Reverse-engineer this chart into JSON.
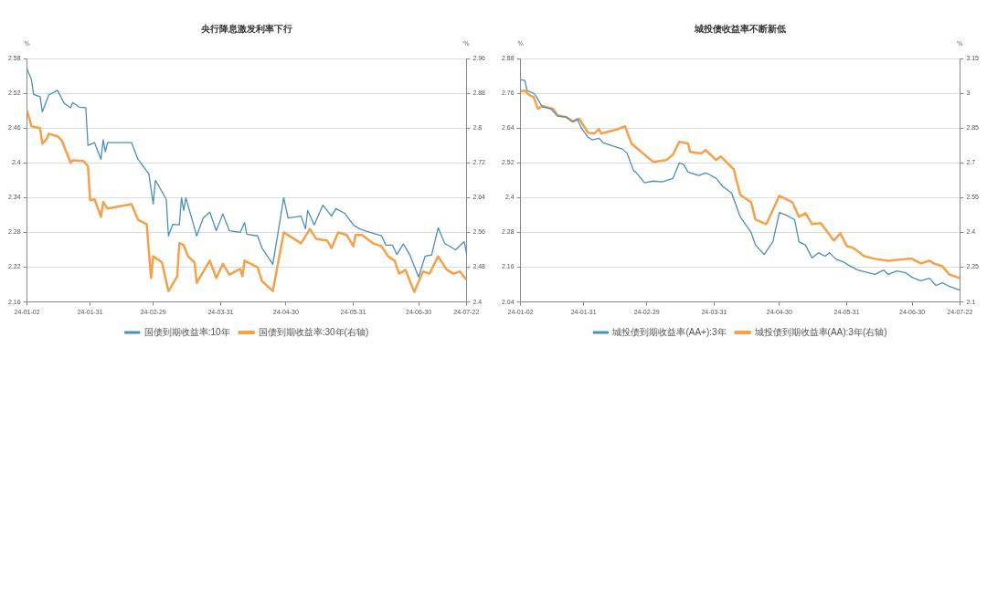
{
  "chart_data": [
    {
      "type": "line",
      "title": "央行降息激发利率下行",
      "ylabel": "%",
      "y2label": "%",
      "legend": "bottom",
      "grid": "y",
      "marker": "none",
      "line_style": "solid",
      "xlim": [
        "--01-02",
        "--07-22"
      ],
      "xticks": [
        {
          "value": "--01-02",
          "label": "24-01-02"
        },
        {
          "value": "--01-31",
          "label": "24-01-31"
        },
        {
          "value": "--02-29",
          "label": "24-02-29"
        },
        {
          "value": "--03-31",
          "label": "24-03-31"
        },
        {
          "value": "--04-30",
          "label": "24-04-30"
        },
        {
          "value": "--05-31",
          "label": "24-05-31"
        },
        {
          "value": "--06-30",
          "label": "24-06-30"
        },
        {
          "value": "--07-22",
          "label": "24-07-22"
        }
      ],
      "ylim": [
        2.16,
        2.58
      ],
      "yticks": [
        2.16,
        2.22,
        2.28,
        2.34,
        2.4,
        2.46,
        2.52,
        2.58
      ],
      "y2lim": [
        2.4,
        2.96
      ],
      "y2ticks": [
        2.4,
        2.48,
        2.56,
        2.64,
        2.72,
        2.8,
        2.88,
        2.96
      ],
      "series": [
        {
          "name": "国债到期收益率:10年",
          "color": "#4a90b8",
          "x": [
            "--01-02",
            "--01-04",
            "--01-05",
            "--01-08",
            "--01-09",
            "--01-12",
            "--01-16",
            "--01-19",
            "--01-22",
            "--01-23",
            "--01-26",
            "--01-29",
            "--01-30",
            "--02-02",
            "--02-05",
            "--02-06",
            "--02-07",
            "--02-08",
            "--02-19",
            "--02-22",
            "--02-27",
            "--02-29",
            "--03-01",
            "--03-06",
            "--03-07",
            "--03-09",
            "--03-12",
            "--03-13",
            "--03-14",
            "--03-15",
            "--03-20",
            "--03-23",
            "--03-26",
            "--03-29",
            "--04-01",
            "--04-04",
            "--04-09",
            "--04-11",
            "--04-12",
            "--04-17",
            "--04-19",
            "--04-24",
            "--04-29",
            "--05-01",
            "--05-07",
            "--05-09",
            "--05-10",
            "--05-13",
            "--05-17",
            "--05-21",
            "--05-23",
            "--05-27",
            "--05-31",
            "--06-03",
            "--06-06",
            "--06-13",
            "--06-15",
            "--06-18",
            "--06-20",
            "--06-23",
            "--06-26",
            "--06-30",
            "--07-03",
            "--07-06",
            "--07-09",
            "--07-12",
            "--07-17",
            "--07-21",
            "--07-22"
          ],
          "values": [
            2.561,
            2.544,
            2.518,
            2.514,
            2.488,
            2.517,
            2.525,
            2.503,
            2.495,
            2.504,
            2.496,
            2.495,
            2.43,
            2.435,
            2.406,
            2.44,
            2.419,
            2.435,
            2.435,
            2.406,
            2.381,
            2.329,
            2.37,
            2.337,
            2.274,
            2.294,
            2.293,
            2.34,
            2.318,
            2.34,
            2.274,
            2.305,
            2.315,
            2.283,
            2.312,
            2.283,
            2.28,
            2.297,
            2.277,
            2.274,
            2.253,
            2.225,
            2.34,
            2.305,
            2.308,
            2.286,
            2.318,
            2.293,
            2.327,
            2.308,
            2.321,
            2.313,
            2.293,
            2.286,
            2.282,
            2.274,
            2.258,
            2.258,
            2.242,
            2.26,
            2.241,
            2.203,
            2.239,
            2.241,
            2.288,
            2.261,
            2.25,
            2.264,
            2.244
          ]
        },
        {
          "name": "国债到期收益率:30年(右轴)",
          "color": "#f5a04a",
          "axis": "y2",
          "x": [
            "--01-02",
            "--01-04",
            "--01-08",
            "--01-09",
            "--01-11",
            "--01-12",
            "--01-16",
            "--01-18",
            "--01-22",
            "--01-23",
            "--01-28",
            "--01-30",
            "--01-31",
            "--02-02",
            "--02-05",
            "--02-06",
            "--02-08",
            "--02-19",
            "--02-22",
            "--02-26",
            "--02-28",
            "--02-29",
            "--03-04",
            "--03-07",
            "--03-11",
            "--03-12",
            "--03-14",
            "--03-16",
            "--03-19",
            "--03-20",
            "--03-26",
            "--03-29",
            "--04-01",
            "--04-04",
            "--04-09",
            "--04-10",
            "--04-11",
            "--04-17",
            "--04-19",
            "--04-24",
            "--04-29",
            "--05-07",
            "--05-11",
            "--05-14",
            "--05-19",
            "--05-21",
            "--05-24",
            "--05-28",
            "--05-31",
            "--06-01",
            "--06-04",
            "--06-09",
            "--06-13",
            "--06-16",
            "--06-19",
            "--06-21",
            "--06-24",
            "--06-26",
            "--06-28",
            "--07-02",
            "--07-05",
            "--07-09",
            "--07-13",
            "--07-16",
            "--07-19",
            "--07-22"
          ],
          "values": [
            2.84,
            2.804,
            2.8,
            2.764,
            2.775,
            2.787,
            2.781,
            2.771,
            2.72,
            2.726,
            2.724,
            2.712,
            2.634,
            2.636,
            2.596,
            2.63,
            2.615,
            2.625,
            2.589,
            2.579,
            2.455,
            2.505,
            2.491,
            2.425,
            2.459,
            2.535,
            2.531,
            2.505,
            2.491,
            2.444,
            2.495,
            2.455,
            2.488,
            2.463,
            2.476,
            2.459,
            2.495,
            2.48,
            2.448,
            2.425,
            2.56,
            2.535,
            2.568,
            2.545,
            2.541,
            2.524,
            2.56,
            2.554,
            2.528,
            2.554,
            2.554,
            2.535,
            2.528,
            2.505,
            2.495,
            2.465,
            2.474,
            2.448,
            2.423,
            2.47,
            2.465,
            2.505,
            2.474,
            2.465,
            2.47,
            2.451
          ]
        }
      ]
    },
    {
      "type": "line",
      "title": "城投债收益率不断新低",
      "ylabel": "%",
      "y2label": "%",
      "legend": "bottom",
      "grid": "y",
      "marker": "none",
      "line_style": "solid",
      "xlim": [
        "--01-02",
        "--07-22"
      ],
      "xticks": [
        {
          "value": "--01-02",
          "label": "24-01-02"
        },
        {
          "value": "--01-31",
          "label": "24-01-31"
        },
        {
          "value": "--02-29",
          "label": "24-02-29"
        },
        {
          "value": "--03-31",
          "label": "24-03-31"
        },
        {
          "value": "--04-30",
          "label": "24-04-30"
        },
        {
          "value": "--05-31",
          "label": "24-05-31"
        },
        {
          "value": "--06-30",
          "label": "24-06-30"
        },
        {
          "value": "--07-22",
          "label": "24-07-22"
        }
      ],
      "ylim": [
        2.04,
        2.88
      ],
      "yticks": [
        2.04,
        2.16,
        2.28,
        2.4,
        2.52,
        2.64,
        2.76,
        2.88
      ],
      "y2lim": [
        2.1,
        3.15
      ],
      "y2ticks": [
        2.1,
        2.25,
        2.4,
        2.55,
        2.7,
        2.85,
        3,
        3.15
      ],
      "series": [
        {
          "name": "城投债到期收益率(AA+):3年",
          "color": "#4a90b8",
          "x": [
            "--01-02",
            "--01-04",
            "--01-05",
            "--01-08",
            "--01-09",
            "--01-12",
            "--01-16",
            "--01-19",
            "--01-23",
            "--01-26",
            "--01-28",
            "--01-30",
            "--02-02",
            "--02-04",
            "--02-07",
            "--02-09",
            "--02-18",
            "--02-20",
            "--02-23",
            "--02-24",
            "--02-28",
            "--03-03",
            "--03-07",
            "--03-12",
            "--03-15",
            "--03-17",
            "--03-19",
            "--03-24",
            "--03-27",
            "--03-29",
            "--04-01",
            "--04-04",
            "--04-08",
            "--04-12",
            "--04-17",
            "--04-19",
            "--04-23",
            "--04-27",
            "--04-30",
            "--05-03",
            "--05-07",
            "--05-09",
            "--05-12",
            "--05-15",
            "--05-18",
            "--05-21",
            "--05-23",
            "--05-26",
            "--05-30",
            "--06-01",
            "--06-05",
            "--06-13",
            "--06-17",
            "--06-19",
            "--06-23",
            "--06-27",
            "--06-30",
            "--07-04",
            "--07-08",
            "--07-11",
            "--07-14",
            "--07-17",
            "--07-22"
          ],
          "values": [
            2.807,
            2.804,
            2.769,
            2.76,
            2.751,
            2.713,
            2.706,
            2.681,
            2.678,
            2.662,
            2.672,
            2.64,
            2.608,
            2.599,
            2.605,
            2.589,
            2.567,
            2.552,
            2.492,
            2.488,
            2.451,
            2.457,
            2.454,
            2.466,
            2.52,
            2.514,
            2.488,
            2.476,
            2.485,
            2.479,
            2.466,
            2.438,
            2.416,
            2.334,
            2.28,
            2.236,
            2.204,
            2.248,
            2.349,
            2.34,
            2.324,
            2.248,
            2.236,
            2.192,
            2.21,
            2.198,
            2.21,
            2.188,
            2.176,
            2.166,
            2.15,
            2.135,
            2.15,
            2.135,
            2.147,
            2.141,
            2.125,
            2.113,
            2.122,
            2.097,
            2.106,
            2.094,
            2.081
          ]
        },
        {
          "name": "城投债到期收益率(AA):3年(右轴)",
          "color": "#f5a04a",
          "axis": "y2",
          "x": [
            "--01-02",
            "--01-04",
            "--01-06",
            "--01-08",
            "--01-10",
            "--01-12",
            "--01-17",
            "--01-19",
            "--01-23",
            "--01-26",
            "--01-29",
            "--02-02",
            "--02-05",
            "--02-07",
            "--02-08",
            "--02-16",
            "--02-19",
            "--02-22",
            "--02-25",
            "--02-28",
            "--03-03",
            "--03-09",
            "--03-12",
            "--03-15",
            "--03-19",
            "--03-20",
            "--03-25",
            "--03-27",
            "--04-01",
            "--04-03",
            "--04-09",
            "--04-12",
            "--04-17",
            "--04-19",
            "--04-24",
            "--04-30",
            "--05-06",
            "--05-09",
            "--05-12",
            "--05-15",
            "--05-19",
            "--05-25",
            "--05-28",
            "--05-31",
            "--06-03",
            "--06-08",
            "--06-13",
            "--06-19",
            "--06-28",
            "--06-30",
            "--07-04",
            "--07-08",
            "--07-10",
            "--07-14",
            "--07-17",
            "--07-22"
          ],
          "values": [
            3.008,
            3.012,
            2.992,
            2.984,
            2.933,
            2.945,
            2.933,
            2.905,
            2.897,
            2.878,
            2.89,
            2.83,
            2.826,
            2.846,
            2.826,
            2.846,
            2.858,
            2.783,
            2.759,
            2.735,
            2.704,
            2.712,
            2.735,
            2.791,
            2.783,
            2.747,
            2.74,
            2.755,
            2.712,
            2.728,
            2.672,
            2.562,
            2.53,
            2.455,
            2.436,
            2.558,
            2.53,
            2.467,
            2.483,
            2.436,
            2.44,
            2.365,
            2.396,
            2.341,
            2.333,
            2.297,
            2.286,
            2.278,
            2.286,
            2.286,
            2.266,
            2.278,
            2.266,
            2.254,
            2.219,
            2.203
          ]
        }
      ]
    }
  ]
}
